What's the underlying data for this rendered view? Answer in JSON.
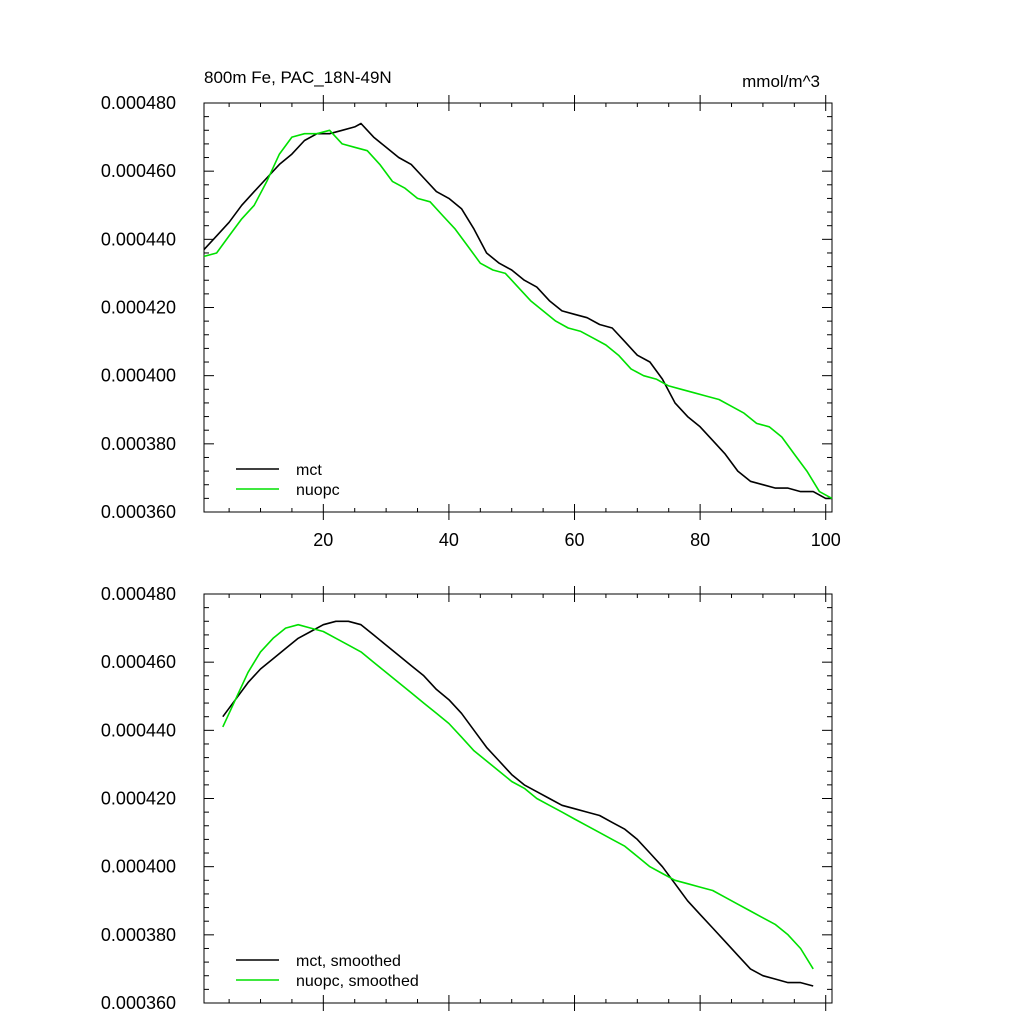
{
  "chart_data": [
    {
      "type": "line",
      "title": "800m Fe, PAC_18N-49N",
      "units": "mmol/m^3",
      "xlim": [
        1,
        101
      ],
      "ylim": [
        0.00036,
        0.00048
      ],
      "x_ticks": [
        20,
        40,
        60,
        80,
        100
      ],
      "x_tick_labels": [
        "20",
        "40",
        "60",
        "80",
        "100"
      ],
      "y_ticks": [
        0.00036,
        0.00038,
        0.0004,
        0.00042,
        0.00044,
        0.00046,
        0.00048
      ],
      "y_tick_labels": [
        "0.000360",
        "0.000380",
        "0.000400",
        "0.000420",
        "0.000440",
        "0.000460",
        "0.000480"
      ],
      "legend_position": "bottom-left",
      "series": [
        {
          "name": "mct",
          "color": "#000000",
          "x": [
            1,
            3,
            5,
            7,
            9,
            11,
            13,
            15,
            17,
            19,
            21,
            23,
            25,
            26,
            28,
            30,
            32,
            34,
            36,
            38,
            40,
            42,
            44,
            46,
            48,
            50,
            52,
            54,
            56,
            58,
            60,
            62,
            64,
            66,
            68,
            70,
            72,
            74,
            76,
            78,
            80,
            82,
            84,
            86,
            88,
            90,
            92,
            94,
            96,
            98,
            100,
            101
          ],
          "y": [
            0.000437,
            0.000441,
            0.000445,
            0.00045,
            0.000454,
            0.000458,
            0.000462,
            0.000465,
            0.000469,
            0.000471,
            0.000471,
            0.000472,
            0.000473,
            0.000474,
            0.00047,
            0.000467,
            0.000464,
            0.000462,
            0.000458,
            0.000454,
            0.000452,
            0.000449,
            0.000443,
            0.000436,
            0.000433,
            0.000431,
            0.000428,
            0.000426,
            0.000422,
            0.000419,
            0.000418,
            0.000417,
            0.000415,
            0.000414,
            0.00041,
            0.000406,
            0.000404,
            0.000399,
            0.000392,
            0.000388,
            0.000385,
            0.000381,
            0.000377,
            0.000372,
            0.000369,
            0.000368,
            0.000367,
            0.000367,
            0.000366,
            0.000366,
            0.000364,
            0.000364
          ]
        },
        {
          "name": "nuopc",
          "color": "#00e000",
          "x": [
            1,
            3,
            5,
            7,
            9,
            11,
            13,
            15,
            17,
            19,
            21,
            23,
            25,
            27,
            29,
            31,
            33,
            35,
            37,
            39,
            41,
            43,
            45,
            47,
            49,
            51,
            53,
            55,
            57,
            59,
            61,
            63,
            65,
            67,
            69,
            71,
            73,
            75,
            77,
            79,
            81,
            83,
            85,
            87,
            89,
            91,
            93,
            95,
            97,
            99,
            101
          ],
          "y": [
            0.000435,
            0.000436,
            0.000441,
            0.000446,
            0.00045,
            0.000457,
            0.000465,
            0.00047,
            0.000471,
            0.000471,
            0.000472,
            0.000468,
            0.000467,
            0.000466,
            0.000462,
            0.000457,
            0.000455,
            0.000452,
            0.000451,
            0.000447,
            0.000443,
            0.000438,
            0.000433,
            0.000431,
            0.00043,
            0.000426,
            0.000422,
            0.000419,
            0.000416,
            0.000414,
            0.000413,
            0.000411,
            0.000409,
            0.000406,
            0.000402,
            0.0004,
            0.000399,
            0.000397,
            0.000396,
            0.000395,
            0.000394,
            0.000393,
            0.000391,
            0.000389,
            0.000386,
            0.000385,
            0.000382,
            0.000377,
            0.000372,
            0.000366,
            0.000364
          ]
        }
      ]
    },
    {
      "type": "line",
      "title": "",
      "xlim": [
        1,
        101
      ],
      "ylim": [
        0.00036,
        0.00048
      ],
      "x_ticks": [
        20,
        40,
        60,
        80,
        100
      ],
      "x_tick_labels": [],
      "y_ticks": [
        0.00036,
        0.00038,
        0.0004,
        0.00042,
        0.00044,
        0.00046,
        0.00048
      ],
      "y_tick_labels": [
        "0.000360",
        "0.000380",
        "0.000400",
        "0.000420",
        "0.000440",
        "0.000460",
        "0.000480"
      ],
      "legend_position": "bottom-left",
      "series": [
        {
          "name": "mct, smoothed",
          "color": "#000000",
          "x": [
            4,
            6,
            8,
            10,
            12,
            14,
            16,
            18,
            20,
            22,
            24,
            26,
            28,
            30,
            32,
            34,
            36,
            38,
            40,
            42,
            44,
            46,
            48,
            50,
            52,
            54,
            56,
            58,
            60,
            62,
            64,
            66,
            68,
            70,
            72,
            74,
            76,
            78,
            80,
            82,
            84,
            86,
            88,
            90,
            92,
            94,
            96,
            98
          ],
          "y": [
            0.000444,
            0.000449,
            0.000454,
            0.000458,
            0.000461,
            0.000464,
            0.000467,
            0.000469,
            0.000471,
            0.000472,
            0.000472,
            0.000471,
            0.000468,
            0.000465,
            0.000462,
            0.000459,
            0.000456,
            0.000452,
            0.000449,
            0.000445,
            0.00044,
            0.000435,
            0.000431,
            0.000427,
            0.000424,
            0.000422,
            0.00042,
            0.000418,
            0.000417,
            0.000416,
            0.000415,
            0.000413,
            0.000411,
            0.000408,
            0.000404,
            0.0004,
            0.000395,
            0.00039,
            0.000386,
            0.000382,
            0.000378,
            0.000374,
            0.00037,
            0.000368,
            0.000367,
            0.000366,
            0.000366,
            0.000365
          ]
        },
        {
          "name": "nuopc, smoothed",
          "color": "#00e000",
          "x": [
            4,
            6,
            8,
            10,
            12,
            14,
            16,
            18,
            20,
            22,
            24,
            26,
            28,
            30,
            32,
            34,
            36,
            38,
            40,
            42,
            44,
            46,
            48,
            50,
            52,
            54,
            56,
            58,
            60,
            62,
            64,
            66,
            68,
            70,
            72,
            74,
            76,
            78,
            80,
            82,
            84,
            86,
            88,
            90,
            92,
            94,
            96,
            98
          ],
          "y": [
            0.000441,
            0.000449,
            0.000457,
            0.000463,
            0.000467,
            0.00047,
            0.000471,
            0.00047,
            0.000469,
            0.000467,
            0.000465,
            0.000463,
            0.00046,
            0.000457,
            0.000454,
            0.000451,
            0.000448,
            0.000445,
            0.000442,
            0.000438,
            0.000434,
            0.000431,
            0.000428,
            0.000425,
            0.000423,
            0.00042,
            0.000418,
            0.000416,
            0.000414,
            0.000412,
            0.00041,
            0.000408,
            0.000406,
            0.000403,
            0.0004,
            0.000398,
            0.000396,
            0.000395,
            0.000394,
            0.000393,
            0.000391,
            0.000389,
            0.000387,
            0.000385,
            0.000383,
            0.00038,
            0.000376,
            0.00037
          ]
        }
      ]
    }
  ]
}
